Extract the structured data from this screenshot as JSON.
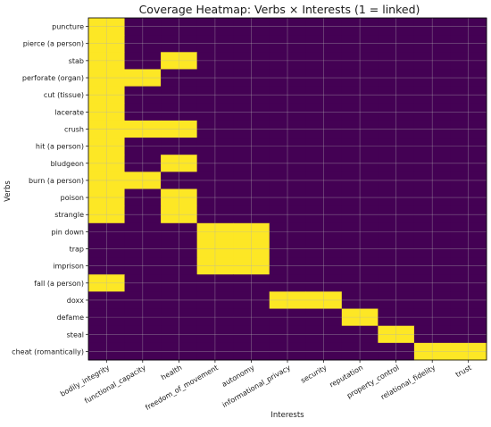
{
  "chart_data": {
    "type": "heatmap",
    "title": "Coverage Heatmap: Verbs × Interests (1 = linked)",
    "xlabel": "Interests",
    "ylabel": "Verbs",
    "x_categories": [
      "bodily_integrity",
      "functional_capacity",
      "health",
      "freedom_of_movement",
      "autonomy",
      "informational_privacy",
      "security",
      "reputation",
      "property_control",
      "relational_fidelity",
      "trust"
    ],
    "y_categories": [
      "puncture",
      "pierce (a person)",
      "stab",
      "perforate (organ)",
      "cut (tissue)",
      "lacerate",
      "crush",
      "hit (a person)",
      "bludgeon",
      "burn (a person)",
      "poison",
      "strangle",
      "pin down",
      "trap",
      "imprison",
      "fall (a person)",
      "doxx",
      "defame",
      "steal",
      "cheat (romantically)"
    ],
    "values": [
      [
        1,
        0,
        0,
        0,
        0,
        0,
        0,
        0,
        0,
        0,
        0
      ],
      [
        1,
        0,
        0,
        0,
        0,
        0,
        0,
        0,
        0,
        0,
        0
      ],
      [
        1,
        0,
        1,
        0,
        0,
        0,
        0,
        0,
        0,
        0,
        0
      ],
      [
        1,
        1,
        0,
        0,
        0,
        0,
        0,
        0,
        0,
        0,
        0
      ],
      [
        1,
        0,
        0,
        0,
        0,
        0,
        0,
        0,
        0,
        0,
        0
      ],
      [
        1,
        0,
        0,
        0,
        0,
        0,
        0,
        0,
        0,
        0,
        0
      ],
      [
        1,
        1,
        1,
        0,
        0,
        0,
        0,
        0,
        0,
        0,
        0
      ],
      [
        1,
        0,
        0,
        0,
        0,
        0,
        0,
        0,
        0,
        0,
        0
      ],
      [
        1,
        0,
        1,
        0,
        0,
        0,
        0,
        0,
        0,
        0,
        0
      ],
      [
        1,
        1,
        0,
        0,
        0,
        0,
        0,
        0,
        0,
        0,
        0
      ],
      [
        1,
        0,
        1,
        0,
        0,
        0,
        0,
        0,
        0,
        0,
        0
      ],
      [
        1,
        0,
        1,
        0,
        0,
        0,
        0,
        0,
        0,
        0,
        0
      ],
      [
        0,
        0,
        0,
        1,
        1,
        0,
        0,
        0,
        0,
        0,
        0
      ],
      [
        0,
        0,
        0,
        1,
        1,
        0,
        0,
        0,
        0,
        0,
        0
      ],
      [
        0,
        0,
        0,
        1,
        1,
        0,
        0,
        0,
        0,
        0,
        0
      ],
      [
        1,
        0,
        0,
        0,
        0,
        0,
        0,
        0,
        0,
        0,
        0
      ],
      [
        0,
        0,
        0,
        0,
        0,
        1,
        1,
        0,
        0,
        0,
        0
      ],
      [
        0,
        0,
        0,
        0,
        0,
        0,
        0,
        1,
        0,
        0,
        0
      ],
      [
        0,
        0,
        0,
        0,
        0,
        0,
        0,
        0,
        1,
        0,
        0
      ],
      [
        0,
        0,
        0,
        0,
        0,
        0,
        0,
        0,
        0,
        1,
        1
      ]
    ],
    "colors": {
      "low": "#440154",
      "high": "#fde725",
      "grid": "#b0b0b0"
    },
    "grid": true,
    "x_tick_rotation_deg": 30
  }
}
